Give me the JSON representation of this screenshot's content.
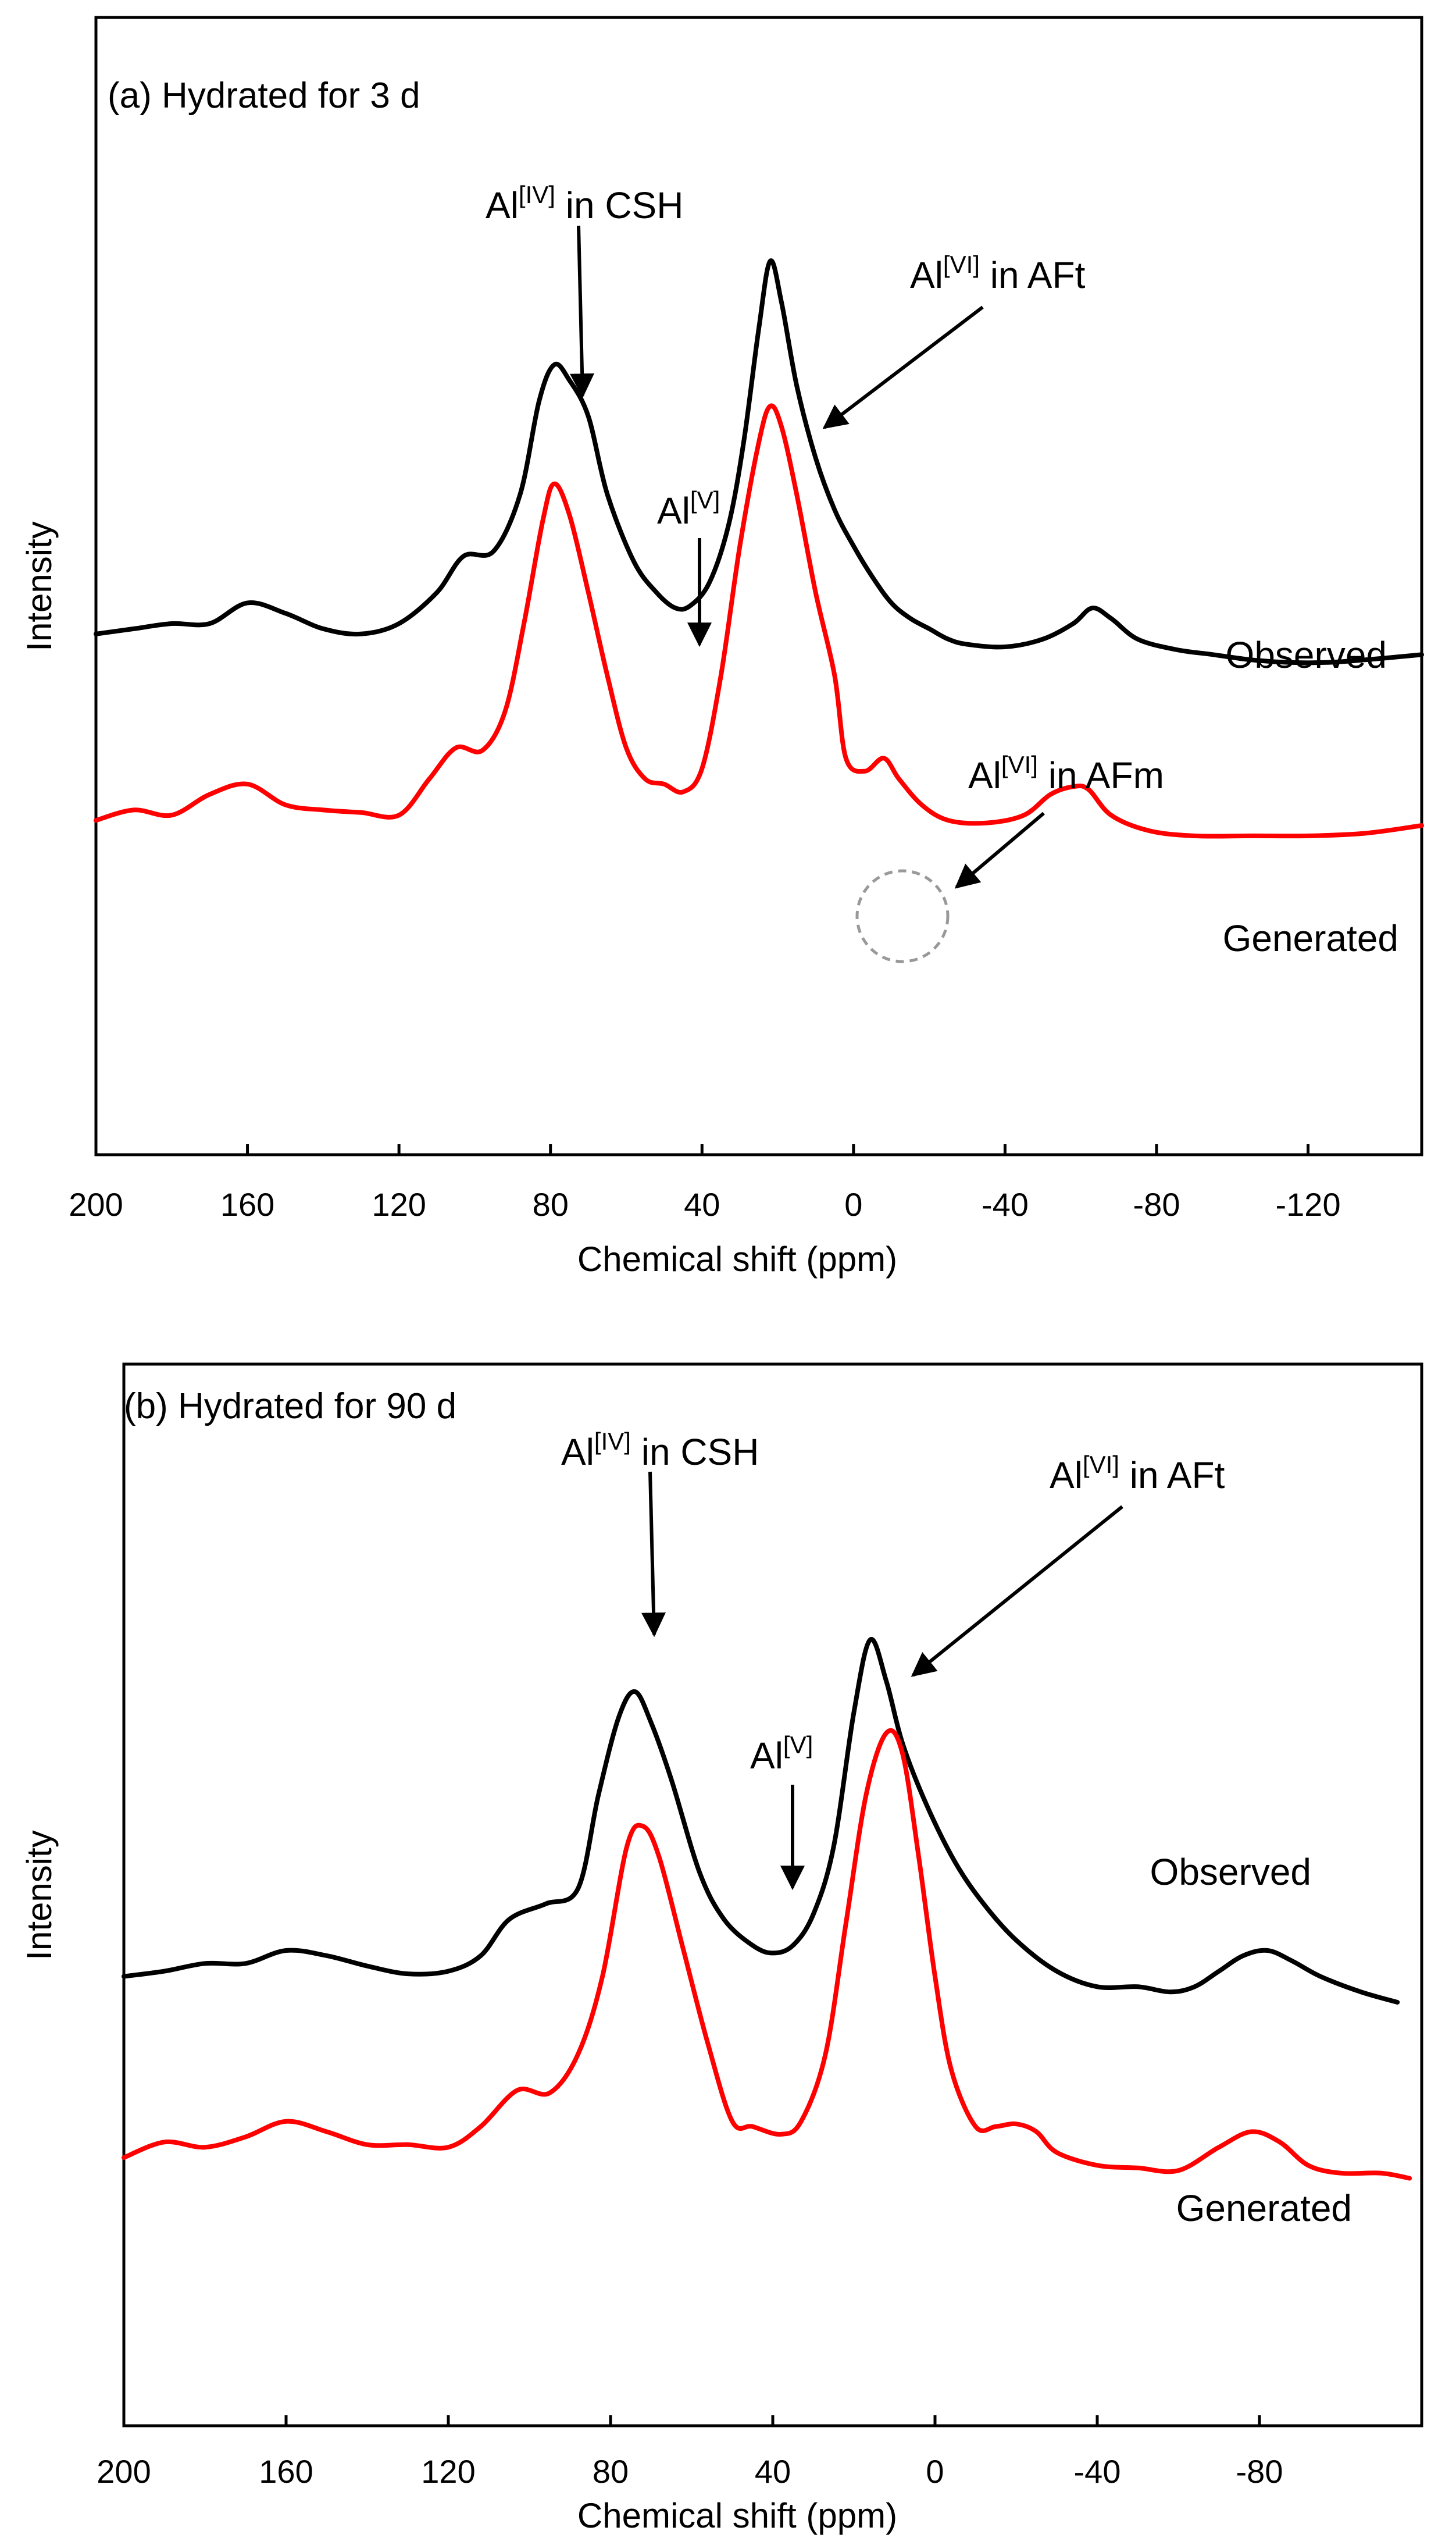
{
  "chart_data": [
    {
      "type": "line",
      "panel_label": "(a) Hydrated for 3 d",
      "xlabel": "Chemical shift (ppm)",
      "ylabel": "Intensity",
      "x_direction": "reversed",
      "xlim": [
        200,
        -150
      ],
      "xticks": [
        200,
        160,
        120,
        80,
        40,
        0,
        -40,
        -80,
        -120
      ],
      "xtick_labels": [
        "200",
        "160",
        "120",
        "80",
        "40",
        "0",
        "-40",
        "-80",
        "-120"
      ],
      "grid": false,
      "series": [
        {
          "name": "Observed",
          "color": "#000000",
          "points": [
            [
              200,
              0.18
            ],
            [
              190,
              0.19
            ],
            [
              180,
              0.2
            ],
            [
              170,
              0.2
            ],
            [
              160,
              0.24
            ],
            [
              150,
              0.22
            ],
            [
              140,
              0.19
            ],
            [
              130,
              0.18
            ],
            [
              120,
              0.2
            ],
            [
              110,
              0.26
            ],
            [
              103,
              0.33
            ],
            [
              95,
              0.34
            ],
            [
              88,
              0.45
            ],
            [
              83,
              0.63
            ],
            [
              79,
              0.7
            ],
            [
              75,
              0.67
            ],
            [
              70,
              0.6
            ],
            [
              65,
              0.45
            ],
            [
              58,
              0.32
            ],
            [
              52,
              0.26
            ],
            [
              47,
              0.23
            ],
            [
              43,
              0.235
            ],
            [
              38,
              0.28
            ],
            [
              33,
              0.39
            ],
            [
              29,
              0.55
            ],
            [
              25,
              0.77
            ],
            [
              22,
              0.9
            ],
            [
              19,
              0.82
            ],
            [
              15,
              0.66
            ],
            [
              10,
              0.52
            ],
            [
              5,
              0.42
            ],
            [
              0,
              0.35
            ],
            [
              -5,
              0.29
            ],
            [
              -10,
              0.24
            ],
            [
              -15,
              0.21
            ],
            [
              -20,
              0.19
            ],
            [
              -25,
              0.17
            ],
            [
              -30,
              0.16
            ],
            [
              -40,
              0.155
            ],
            [
              -50,
              0.17
            ],
            [
              -58,
              0.2
            ],
            [
              -63,
              0.23
            ],
            [
              -68,
              0.21
            ],
            [
              -75,
              0.17
            ],
            [
              -85,
              0.15
            ],
            [
              -95,
              0.14
            ],
            [
              -105,
              0.13
            ],
            [
              -115,
              0.125
            ],
            [
              -125,
              0.125
            ],
            [
              -135,
              0.13
            ],
            [
              -150,
              0.14
            ]
          ]
        },
        {
          "name": "Generated",
          "color": "#ff0000",
          "points": [
            [
              200,
              -0.18
            ],
            [
              190,
              -0.16
            ],
            [
              180,
              -0.17
            ],
            [
              170,
              -0.13
            ],
            [
              160,
              -0.11
            ],
            [
              150,
              -0.15
            ],
            [
              140,
              -0.16
            ],
            [
              130,
              -0.165
            ],
            [
              120,
              -0.17
            ],
            [
              112,
              -0.1
            ],
            [
              105,
              -0.04
            ],
            [
              98,
              -0.045
            ],
            [
              92,
              0.03
            ],
            [
              87,
              0.2
            ],
            [
              82,
              0.4
            ],
            [
              79,
              0.47
            ],
            [
              75,
              0.41
            ],
            [
              70,
              0.26
            ],
            [
              65,
              0.1
            ],
            [
              60,
              -0.04
            ],
            [
              55,
              -0.1
            ],
            [
              50,
              -0.11
            ],
            [
              45,
              -0.125
            ],
            [
              40,
              -0.08
            ],
            [
              35,
              0.1
            ],
            [
              30,
              0.35
            ],
            [
              25,
              0.55
            ],
            [
              22,
              0.62
            ],
            [
              19,
              0.58
            ],
            [
              15,
              0.45
            ],
            [
              10,
              0.26
            ],
            [
              5,
              0.1
            ],
            [
              2,
              -0.06
            ],
            [
              -3,
              -0.085
            ],
            [
              -8,
              -0.06
            ],
            [
              -12,
              -0.1
            ],
            [
              -18,
              -0.15
            ],
            [
              -25,
              -0.18
            ],
            [
              -35,
              -0.185
            ],
            [
              -45,
              -0.17
            ],
            [
              -52,
              -0.13
            ],
            [
              -58,
              -0.115
            ],
            [
              -62,
              -0.12
            ],
            [
              -68,
              -0.17
            ],
            [
              -78,
              -0.2
            ],
            [
              -90,
              -0.21
            ],
            [
              -105,
              -0.21
            ],
            [
              -120,
              -0.21
            ],
            [
              -135,
              -0.205
            ],
            [
              -150,
              -0.19
            ]
          ]
        }
      ],
      "series_labels": [
        "Observed",
        "Generated"
      ],
      "annotations": [
        {
          "text_main": "Al",
          "sup": "[IV]",
          "text_suffix": " in CSH",
          "target_x": 75
        },
        {
          "text_main": "Al",
          "sup": "[VI]",
          "text_suffix": " in AFt",
          "target_x": 11
        },
        {
          "text_main": "Al",
          "sup": "[V]",
          "text_suffix": "",
          "target_x": 44
        },
        {
          "text_main": "Al",
          "sup": "[VI]",
          "text_suffix": " in AFm",
          "target_x": -10
        }
      ]
    },
    {
      "type": "line",
      "panel_label": "(b) Hydrated for 90 d",
      "xlabel": "Chemical shift (ppm)",
      "ylabel": "Intensity",
      "x_direction": "reversed",
      "xlim": [
        200,
        -120
      ],
      "xticks": [
        200,
        160,
        120,
        80,
        40,
        0,
        -40,
        -80
      ],
      "xtick_labels": [
        "200",
        "160",
        "120",
        "80",
        "40",
        "0",
        "-40",
        "-80"
      ],
      "grid": false,
      "series": [
        {
          "name": "Observed",
          "color": "#000000",
          "points": [
            [
              200,
              0.25
            ],
            [
              190,
              0.26
            ],
            [
              180,
              0.275
            ],
            [
              170,
              0.275
            ],
            [
              160,
              0.3
            ],
            [
              150,
              0.29
            ],
            [
              140,
              0.27
            ],
            [
              130,
              0.255
            ],
            [
              120,
              0.26
            ],
            [
              112,
              0.29
            ],
            [
              105,
              0.36
            ],
            [
              96,
              0.39
            ],
            [
              88,
              0.42
            ],
            [
              83,
              0.6
            ],
            [
              78,
              0.75
            ],
            [
              74,
              0.8
            ],
            [
              70,
              0.74
            ],
            [
              65,
              0.63
            ],
            [
              58,
              0.45
            ],
            [
              52,
              0.36
            ],
            [
              45,
              0.31
            ],
            [
              40,
              0.295
            ],
            [
              35,
              0.31
            ],
            [
              30,
              0.37
            ],
            [
              25,
              0.5
            ],
            [
              20,
              0.76
            ],
            [
              16,
              0.9
            ],
            [
              12,
              0.82
            ],
            [
              8,
              0.7
            ],
            [
              2,
              0.58
            ],
            [
              -5,
              0.47
            ],
            [
              -12,
              0.39
            ],
            [
              -20,
              0.32
            ],
            [
              -30,
              0.26
            ],
            [
              -40,
              0.23
            ],
            [
              -50,
              0.23
            ],
            [
              -58,
              0.22
            ],
            [
              -64,
              0.23
            ],
            [
              -70,
              0.26
            ],
            [
              -76,
              0.29
            ],
            [
              -82,
              0.3
            ],
            [
              -88,
              0.28
            ],
            [
              -95,
              0.25
            ],
            [
              -105,
              0.22
            ],
            [
              -114,
              0.2
            ]
          ]
        },
        {
          "name": "Generated",
          "color": "#ff0000",
          "points": [
            [
              200,
              -0.1
            ],
            [
              190,
              -0.07
            ],
            [
              180,
              -0.08
            ],
            [
              170,
              -0.06
            ],
            [
              160,
              -0.03
            ],
            [
              150,
              -0.05
            ],
            [
              140,
              -0.075
            ],
            [
              130,
              -0.075
            ],
            [
              120,
              -0.08
            ],
            [
              112,
              -0.04
            ],
            [
              103,
              0.03
            ],
            [
              95,
              0.025
            ],
            [
              88,
              0.1
            ],
            [
              82,
              0.25
            ],
            [
              76,
              0.5
            ],
            [
              72,
              0.54
            ],
            [
              68,
              0.48
            ],
            [
              62,
              0.3
            ],
            [
              56,
              0.12
            ],
            [
              50,
              -0.03
            ],
            [
              45,
              -0.04
            ],
            [
              38,
              -0.055
            ],
            [
              33,
              -0.03
            ],
            [
              27,
              0.1
            ],
            [
              22,
              0.35
            ],
            [
              17,
              0.6
            ],
            [
              12,
              0.72
            ],
            [
              8,
              0.68
            ],
            [
              4,
              0.48
            ],
            [
              0,
              0.25
            ],
            [
              -4,
              0.07
            ],
            [
              -10,
              -0.04
            ],
            [
              -15,
              -0.04
            ],
            [
              -20,
              -0.035
            ],
            [
              -25,
              -0.05
            ],
            [
              -30,
              -0.09
            ],
            [
              -40,
              -0.115
            ],
            [
              -50,
              -0.12
            ],
            [
              -60,
              -0.125
            ],
            [
              -70,
              -0.08
            ],
            [
              -78,
              -0.05
            ],
            [
              -85,
              -0.07
            ],
            [
              -92,
              -0.115
            ],
            [
              -100,
              -0.13
            ],
            [
              -110,
              -0.13
            ],
            [
              -117,
              -0.14
            ]
          ]
        }
      ],
      "series_labels": [
        "Observed",
        "Generated"
      ],
      "annotations": [
        {
          "text_main": "Al",
          "sup": "[IV]",
          "text_suffix": " in CSH",
          "target_x": 71
        },
        {
          "text_main": "Al",
          "sup": "[VI]",
          "text_suffix": " in AFt",
          "target_x": 7
        },
        {
          "text_main": "Al",
          "sup": "[V]",
          "text_suffix": "",
          "target_x": 37
        }
      ]
    }
  ]
}
